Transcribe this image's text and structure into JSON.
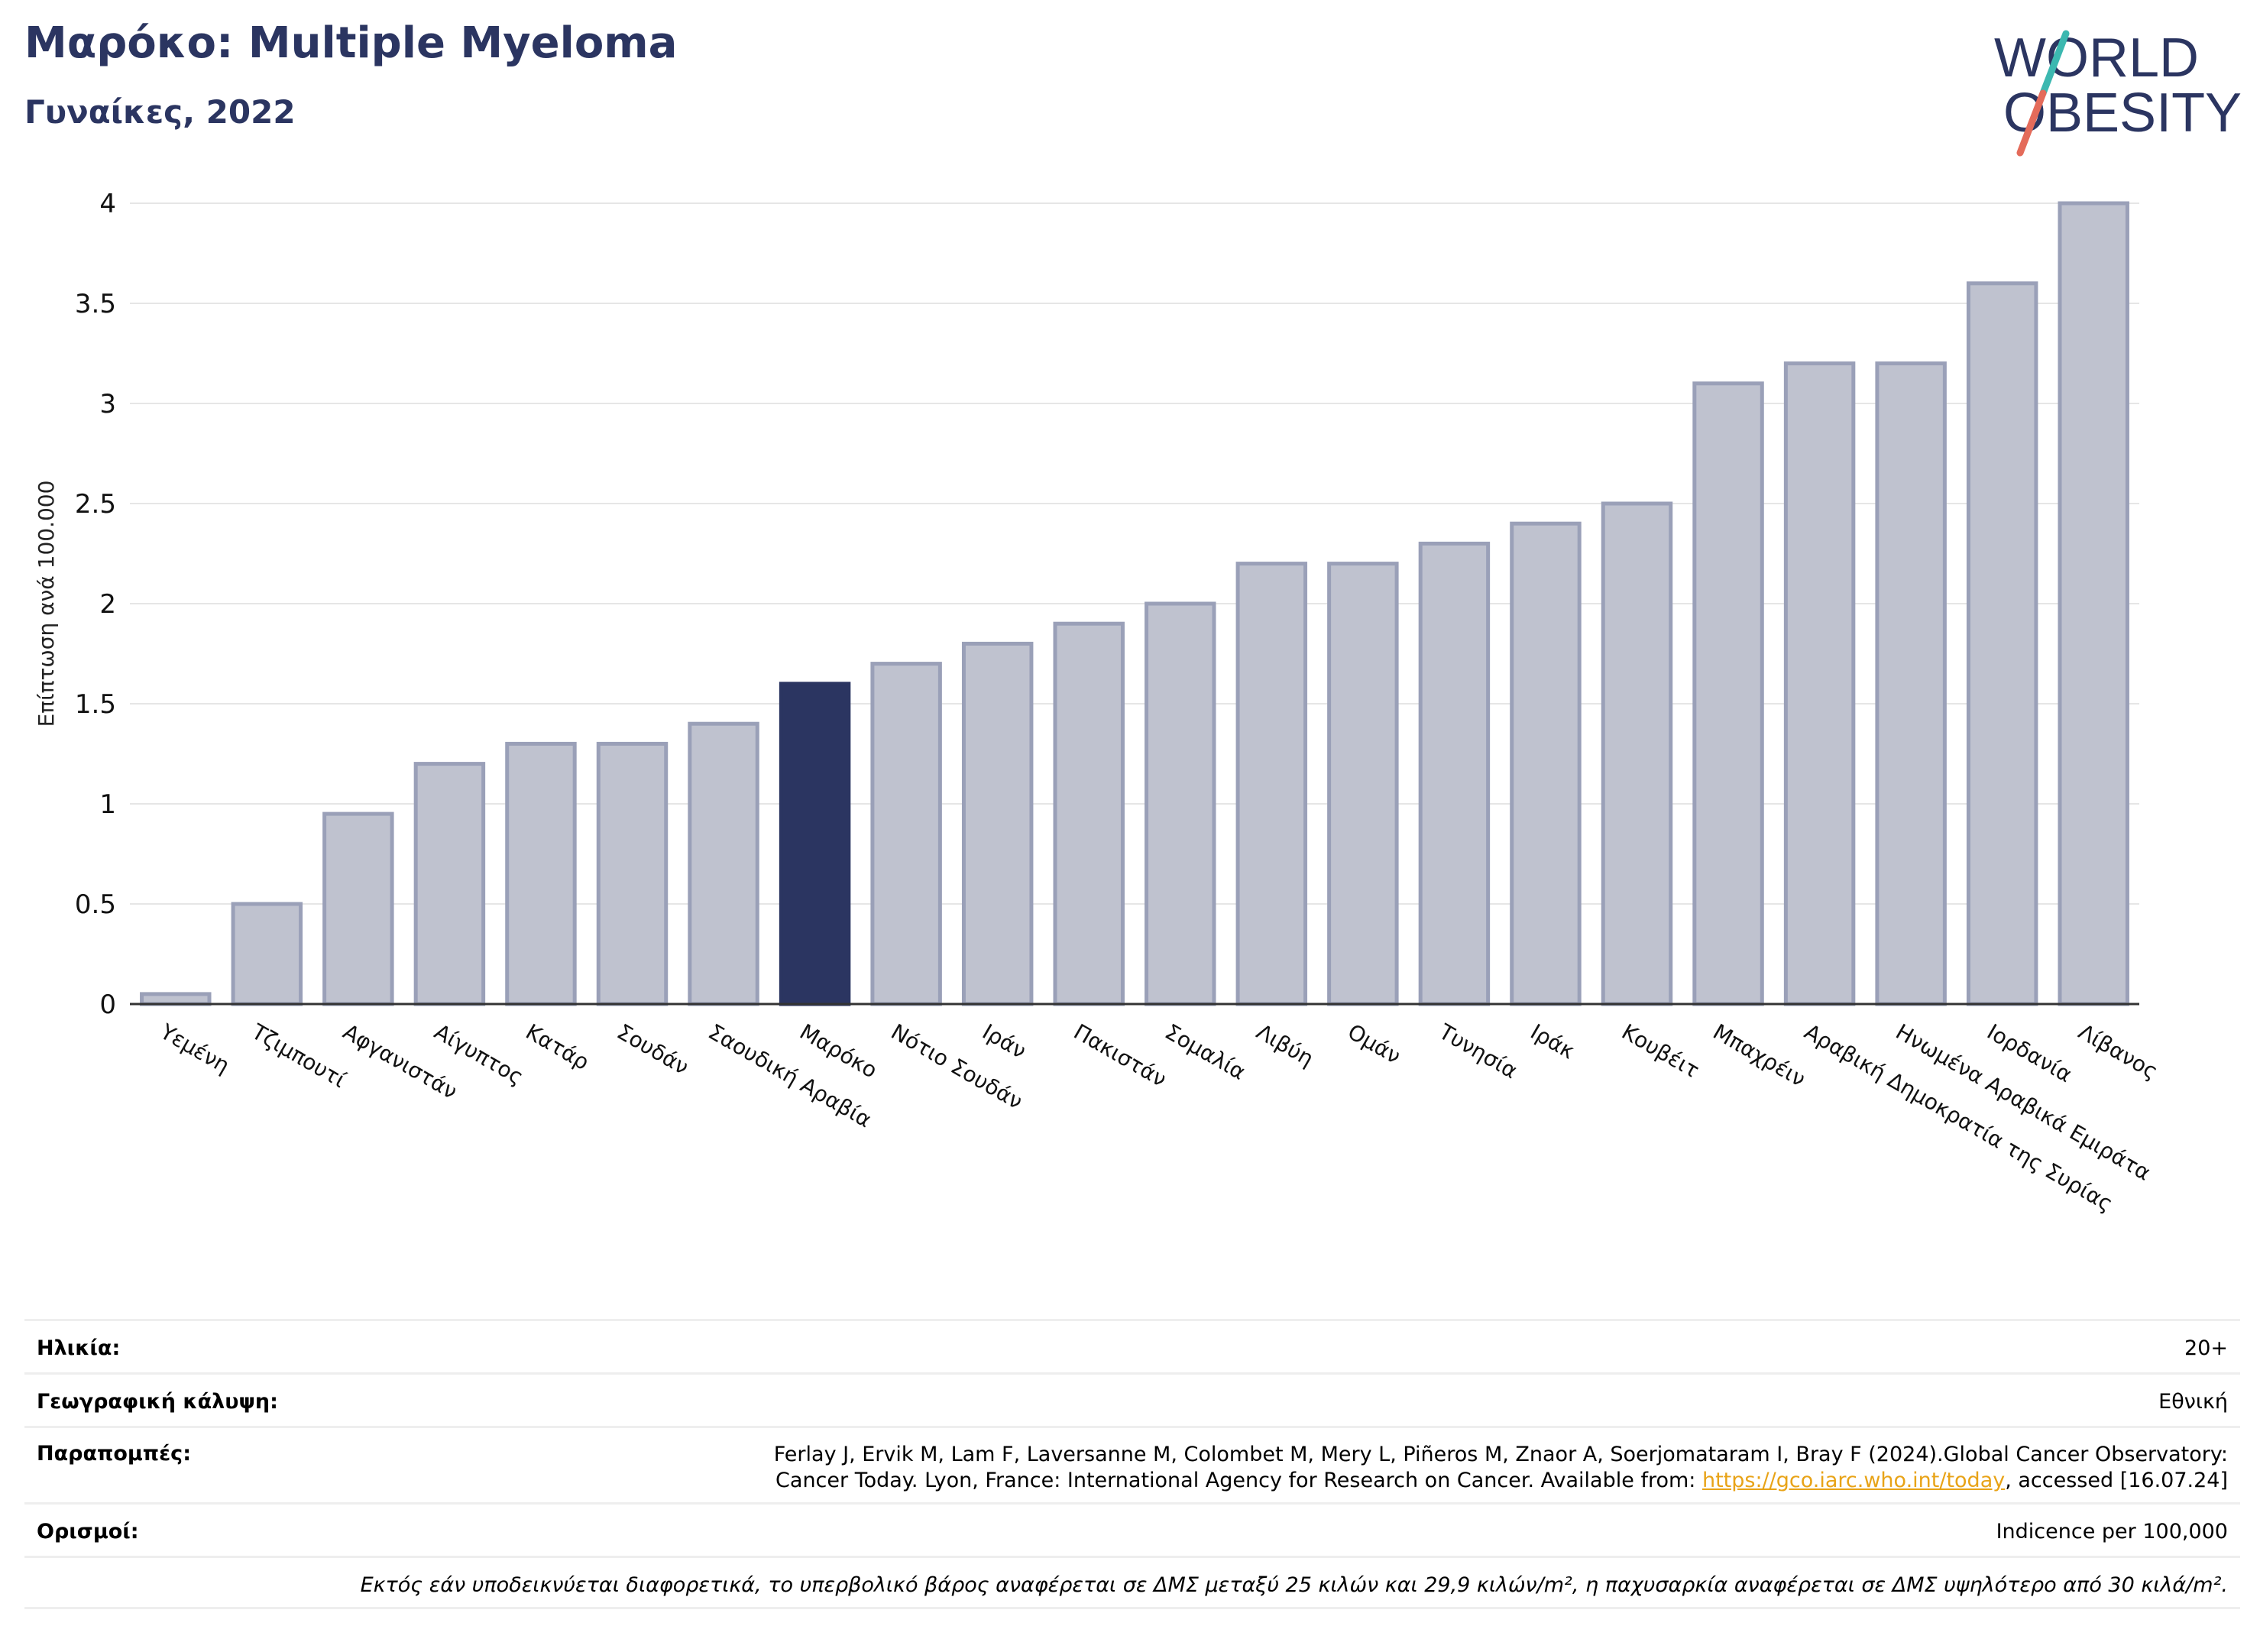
{
  "header": {
    "title": "Μαρόκο: Multiple Myeloma",
    "subtitle": "Γυναίκες, 2022"
  },
  "logo": {
    "line1": "WORLD",
    "line2": "OBESITY"
  },
  "chart_data": {
    "type": "bar",
    "title": "Μαρόκο: Multiple Myeloma",
    "subtitle": "Γυναίκες, 2022",
    "ylabel": "Επίπτωση ανά 100.000",
    "xlabel": "",
    "ylim": [
      0,
      4
    ],
    "yticks": [
      0,
      0.5,
      1,
      1.5,
      2,
      2.5,
      3,
      3.5,
      4
    ],
    "ytick_labels": [
      "0",
      "0.5",
      "1",
      "1.5",
      "2",
      "2.5",
      "3",
      "3.5",
      "4"
    ],
    "grid": true,
    "highlight": "Μαρόκο",
    "colors": {
      "bar": "#bfc2cf",
      "bar_edge": "#9aa0b8",
      "highlight": "#2b3561",
      "grid": "#e6e6e6"
    },
    "categories": [
      "Υεμένη",
      "Τζιμπουτί",
      "Αφγανιστάν",
      "Αίγυπτος",
      "Κατάρ",
      "Σουδάν",
      "Σαουδική Αραβία",
      "Μαρόκο",
      "Νότιο Σουδάν",
      "Ιράν",
      "Πακιστάν",
      "Σομαλία",
      "Λιβύη",
      "Ομάν",
      "Τυνησία",
      "Ιράκ",
      "Κουβέιτ",
      "Μπαχρέιν",
      "Αραβική Δημοκρατία της Συρίας",
      "Ηνωμένα Αραβικά Εμιράτα",
      "Ιορδανία",
      "Λίβανος"
    ],
    "values": [
      0.05,
      0.5,
      0.95,
      1.2,
      1.3,
      1.3,
      1.4,
      1.6,
      1.7,
      1.8,
      1.9,
      2.0,
      2.2,
      2.2,
      2.3,
      2.4,
      2.5,
      3.1,
      3.2,
      3.2,
      3.6,
      4.0
    ]
  },
  "info": {
    "age_label": "Ηλικία:",
    "age_value": "20+",
    "coverage_label": "Γεωγραφική κάλυψη:",
    "coverage_value": "Εθνική",
    "refs_label": "Παραπομπές:",
    "refs_line1": "Ferlay J, Ervik M, Lam F, Laversanne M, Colombet M, Mery L, Piñeros M, Znaor A, Soerjomataram I, Bray F (2024).Global Cancer Observatory:",
    "refs_line2_pre": "Cancer Today. Lyon, France: International Agency for Research on Cancer. Available from: ",
    "refs_link": "https://gco.iarc.who.int/today",
    "refs_line2_post": ", accessed [16.07.24]",
    "defs_label": "Ορισμοί:",
    "defs_value": "Indicence per 100,000",
    "note": "Εκτός εάν υποδεικνύεται διαφορετικά, το υπερβολικό βάρος αναφέρεται σε ΔΜΣ μεταξύ 25 κιλών και 29,9 κιλών/m², η παχυσαρκία αναφέρεται σε ΔΜΣ υψηλότερο από 30 κιλά/m²."
  }
}
